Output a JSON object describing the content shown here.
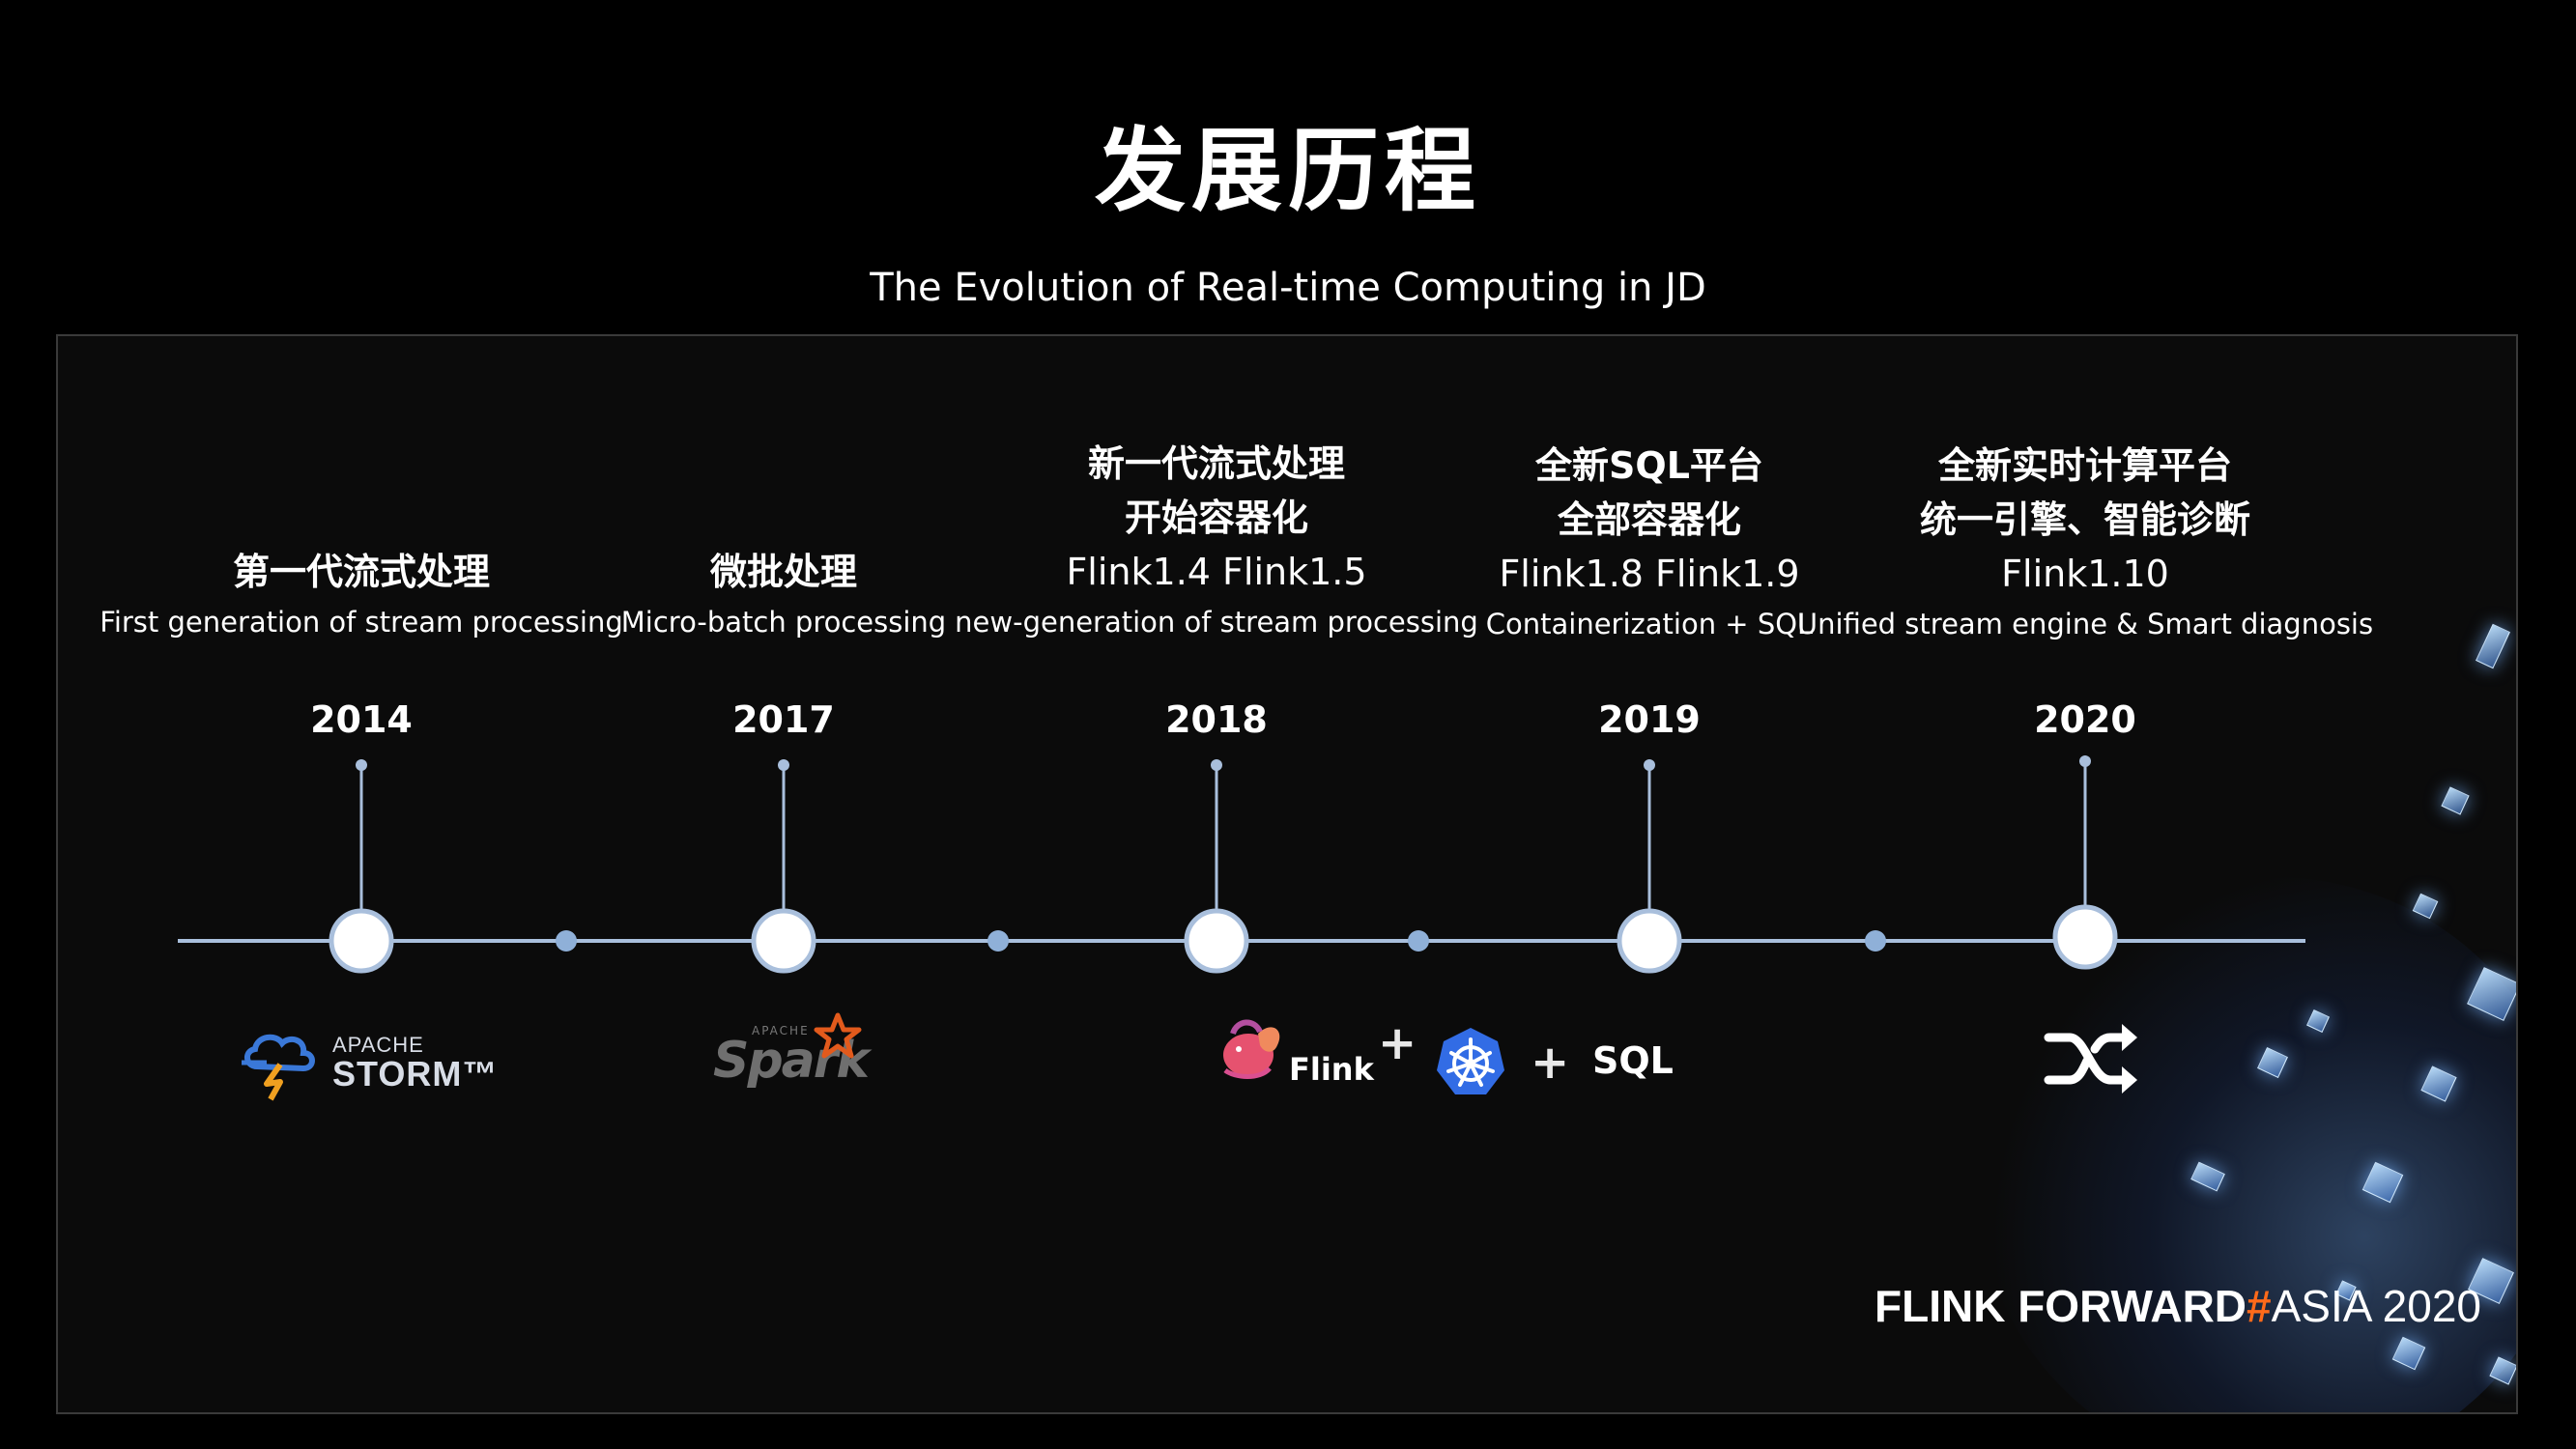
{
  "header": {
    "title": "发展历程",
    "subtitle": "The Evolution of Real-time Computing in JD"
  },
  "timeline": {
    "milestones": [
      {
        "year": "2014",
        "zh_lines": [
          "第一代流式处理"
        ],
        "version": "",
        "en": "First generation of stream processing",
        "logo": "apache-storm"
      },
      {
        "year": "2017",
        "zh_lines": [
          "微批处理"
        ],
        "version": "",
        "en": "Micro-batch processing",
        "logo": "apache-spark"
      },
      {
        "year": "2018",
        "zh_lines": [
          "新一代流式处理",
          "开始容器化"
        ],
        "version": "Flink1.4 Flink1.5",
        "en": "new-generation of stream processing",
        "logo": "flink"
      },
      {
        "year": "2019",
        "zh_lines": [
          "全新SQL平台",
          "全部容器化"
        ],
        "version": "Flink1.8 Flink1.9",
        "en": "Containerization + SQL",
        "logo": "kubernetes-sql"
      },
      {
        "year": "2020",
        "zh_lines": [
          "全新实时计算平台",
          "统一引擎、智能诊断"
        ],
        "version": "Flink1.10",
        "en": "Unified stream engine & Smart diagnosis",
        "logo": "shuffle"
      }
    ]
  },
  "logos": {
    "storm_small": "APACHE",
    "storm_big": "STORM™",
    "spark_small": "APACHE",
    "spark_word": "Spark",
    "flink_word": "Flink",
    "plus": "+",
    "sql": "SQL"
  },
  "footer": {
    "brand_a": "FLINK",
    "brand_b": "FORWARD",
    "brand_hash": "#",
    "brand_c": "ASIA 2020"
  },
  "colors": {
    "background": "#000000",
    "panel": "#0b0b0b",
    "timeline": "#a9bfdc",
    "accent_orange": "#ff6a1a",
    "kubernetes_blue": "#326ce5"
  }
}
